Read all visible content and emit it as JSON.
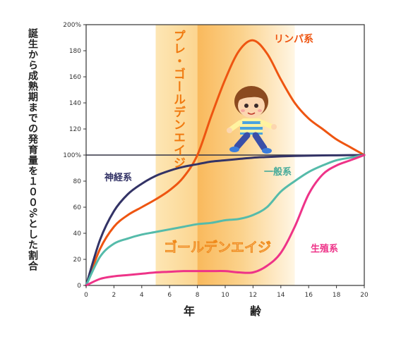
{
  "chart_data": {
    "type": "line",
    "ylabel": "誕生から成熟期までの発育量を１００%とした割合",
    "xlabel": [
      "年",
      "齢"
    ],
    "xlim": [
      0,
      20
    ],
    "ylim": [
      0,
      200
    ],
    "x_ticks": [
      "0",
      "2",
      "4",
      "6",
      "8",
      "10",
      "12",
      "14",
      "16",
      "18",
      "20"
    ],
    "y_ticks": [
      "0",
      "20",
      "40",
      "60",
      "80",
      "100%",
      "120",
      "140",
      "160",
      "180",
      "200%"
    ],
    "bands": [
      {
        "label": "プレ・ゴールデンエイジ",
        "from": 5,
        "to": 8
      },
      {
        "label": "ゴールデンエイジ",
        "from": 8,
        "to": 15
      }
    ],
    "reference_line": 100,
    "series": [
      {
        "name": "リンパ系",
        "color": "#ee5511",
        "x": [
          0,
          1,
          2,
          3,
          4,
          5,
          6,
          7,
          8,
          9,
          10,
          11,
          12,
          13,
          14,
          15,
          16,
          17,
          18,
          19,
          20
        ],
        "y": [
          0,
          28,
          45,
          54,
          60,
          66,
          73,
          83,
          100,
          130,
          158,
          180,
          188,
          178,
          158,
          140,
          128,
          120,
          112,
          106,
          100
        ]
      },
      {
        "name": "神経系",
        "color": "#333366",
        "x": [
          0,
          1,
          2,
          3,
          4,
          5,
          6,
          7,
          8,
          9,
          10,
          11,
          12,
          13,
          14,
          15,
          16,
          17,
          18,
          19,
          20
        ],
        "y": [
          0,
          35,
          57,
          70,
          78,
          84,
          88,
          91,
          93,
          95,
          96,
          97,
          98,
          98.5,
          99,
          99.3,
          99.5,
          99.7,
          99.8,
          99.9,
          100
        ]
      },
      {
        "name": "一般系",
        "color": "#55bbaa",
        "x": [
          0,
          1,
          2,
          3,
          4,
          5,
          6,
          7,
          8,
          9,
          10,
          11,
          12,
          13,
          14,
          15,
          16,
          17,
          18,
          19,
          20
        ],
        "y": [
          0,
          22,
          32,
          36,
          39,
          41,
          43,
          45,
          47,
          48,
          50,
          51,
          54,
          60,
          72,
          80,
          87,
          92,
          96,
          98,
          100
        ]
      },
      {
        "name": "生殖系",
        "color": "#ee3388",
        "x": [
          0,
          1,
          2,
          3,
          4,
          5,
          6,
          7,
          8,
          9,
          10,
          11,
          12,
          13,
          14,
          15,
          16,
          17,
          18,
          19,
          20
        ],
        "y": [
          0,
          5,
          7,
          8,
          9,
          10,
          10.5,
          11,
          11,
          11,
          11,
          10,
          10,
          15,
          25,
          45,
          70,
          85,
          92,
          96,
          100
        ]
      }
    ],
    "labels": {
      "lymph": "リンパ系",
      "nerve": "神経系",
      "general": "一般系",
      "repro": "生殖系",
      "pre_golden": "プレ・ゴールデンエイジ",
      "golden": "ゴールデンエイジ"
    }
  }
}
